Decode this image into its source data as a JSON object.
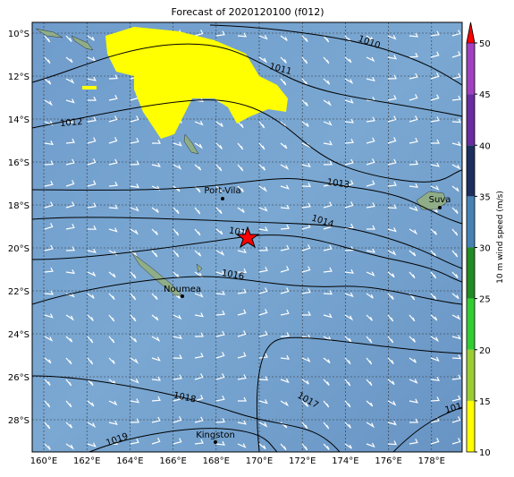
{
  "title": "Forecast of 2020120100 (f012)",
  "lon_labels": [
    "160°E",
    "162°E",
    "164°E",
    "166°E",
    "168°E",
    "170°E",
    "172°E",
    "174°E",
    "176°E",
    "178°E"
  ],
  "lat_labels": [
    "10°S",
    "12°S",
    "14°S",
    "16°S",
    "18°S",
    "20°S",
    "22°S",
    "24°S",
    "26°S",
    "28°S"
  ],
  "colorbar": {
    "label": "10 m wind speed (m/s)",
    "ticks": [
      10,
      15,
      20,
      25,
      30,
      35,
      40,
      45,
      50
    ],
    "colors": [
      "#ffff00",
      "#9acd32",
      "#32cd32",
      "#228b22",
      "#4682b4",
      "#1c2f5e",
      "#6a2ca0",
      "#a040c0"
    ],
    "extend_color": "#ff0000"
  },
  "contour_labels": [
    "1010",
    "1011",
    "1012",
    "1013",
    "1014",
    "101",
    "1016",
    "1017",
    "1018",
    "1019",
    "101"
  ],
  "places": [
    "Port-Vila",
    "Suva",
    "Noumea",
    "Kingston"
  ]
}
